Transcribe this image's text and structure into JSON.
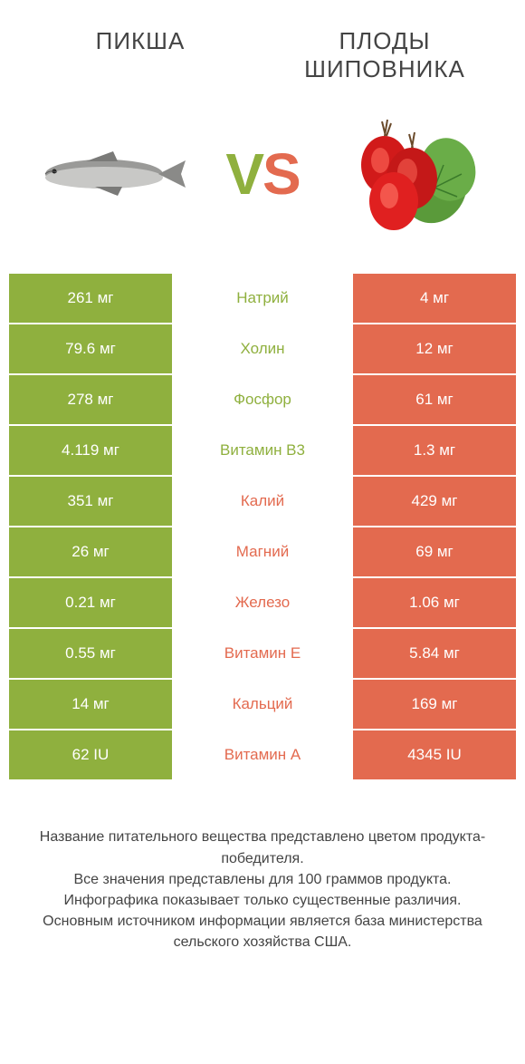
{
  "header": {
    "left_title": "ПИКША",
    "right_title": "ПЛОДЫ\nШИПОВНИКА"
  },
  "vs": {
    "v": "V",
    "s": "S"
  },
  "colors": {
    "left": "#8fb03e",
    "right": "#e36a4f",
    "bg": "#ffffff",
    "text": "#444444"
  },
  "rows": [
    {
      "left": "261 мг",
      "label": "Натрий",
      "right": "4 мг",
      "winner": "left"
    },
    {
      "left": "79.6 мг",
      "label": "Холин",
      "right": "12 мг",
      "winner": "left"
    },
    {
      "left": "278 мг",
      "label": "Фосфор",
      "right": "61 мг",
      "winner": "left"
    },
    {
      "left": "4.119 мг",
      "label": "Витамин B3",
      "right": "1.3 мг",
      "winner": "left"
    },
    {
      "left": "351 мг",
      "label": "Калий",
      "right": "429 мг",
      "winner": "right"
    },
    {
      "left": "26 мг",
      "label": "Магний",
      "right": "69 мг",
      "winner": "right"
    },
    {
      "left": "0.21 мг",
      "label": "Железо",
      "right": "1.06 мг",
      "winner": "right"
    },
    {
      "left": "0.55 мг",
      "label": "Витамин E",
      "right": "5.84 мг",
      "winner": "right"
    },
    {
      "left": "14 мг",
      "label": "Кальций",
      "right": "169 мг",
      "winner": "right"
    },
    {
      "left": "62 IU",
      "label": "Витамин A",
      "right": "4345 IU",
      "winner": "right"
    }
  ],
  "footer": {
    "line1": "Название питательного вещества представлено цветом продукта-победителя.",
    "line2": "Все значения представлены для 100 граммов продукта.",
    "line3": "Инфографика показывает только существенные различия.",
    "line4": "Основным источником информации является база министерства сельского хозяйства США."
  },
  "icons": {
    "left": "fish-icon",
    "right": "rosehip-icon"
  }
}
